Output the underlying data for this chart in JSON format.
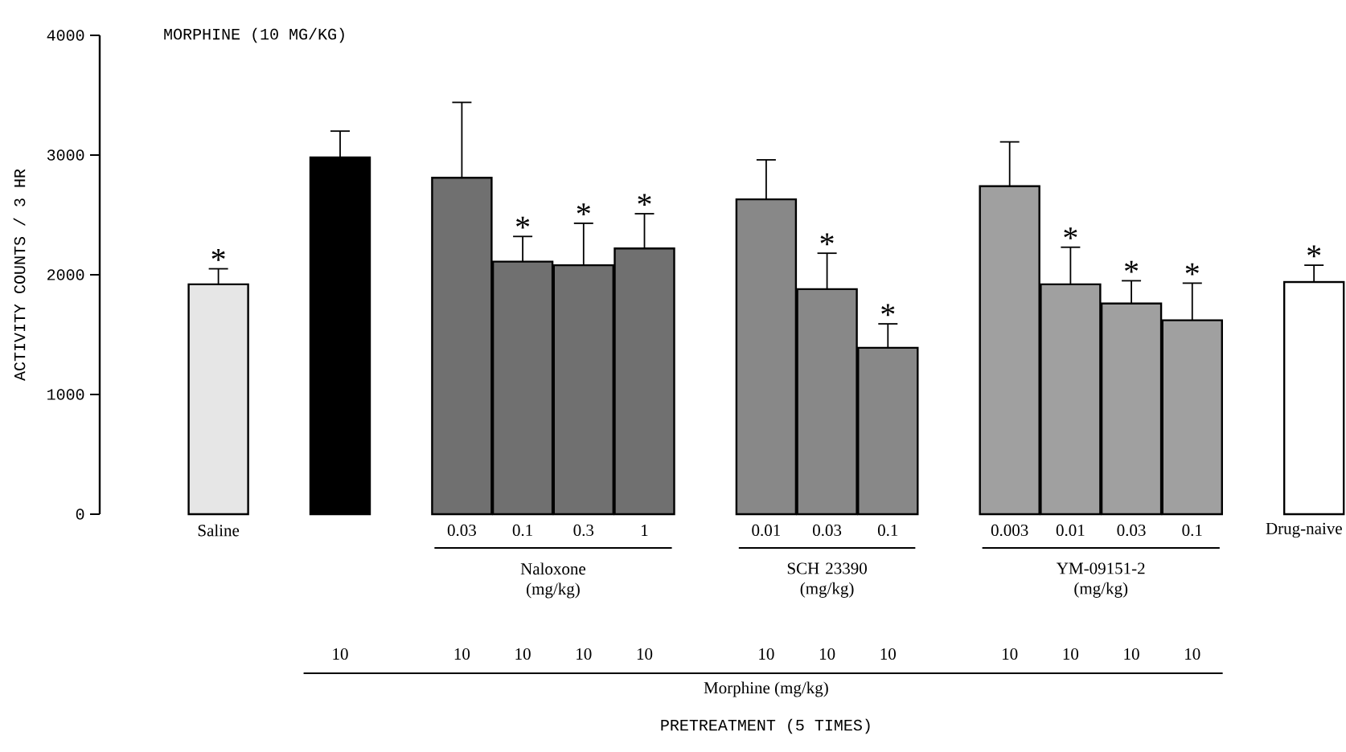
{
  "chart_data": {
    "type": "bar",
    "title": "MORPHINE (10 MG/KG)",
    "ylabel": "ACTIVITY COUNTS / 3 HR",
    "categories": [
      "Saline",
      null,
      "0.03",
      "0.1",
      "0.3",
      "1",
      "0.01",
      "0.03",
      "0.1",
      "0.003",
      "0.01",
      "0.03",
      "0.1",
      "Drug-naive"
    ],
    "values": [
      1920,
      2980,
      2810,
      2110,
      2080,
      2220,
      2630,
      1880,
      1390,
      2740,
      1920,
      1760,
      1620,
      1940
    ],
    "errors": [
      130,
      220,
      630,
      210,
      350,
      290,
      330,
      300,
      200,
      370,
      310,
      190,
      310,
      140
    ],
    "value_labels": [
      "*",
      null,
      null,
      "*",
      "*",
      "*",
      null,
      "*",
      "*",
      null,
      "*",
      "*",
      "*",
      "*"
    ],
    "colors": [
      "#e6e6e6",
      "#000000",
      "#707070",
      "#707070",
      "#707070",
      "#707070",
      "#888888",
      "#888888",
      "#888888",
      "#a0a0a0",
      "#a0a0a0",
      "#a0a0a0",
      "#a0a0a0",
      "#ffffff"
    ],
    "ylim": [
      0,
      4000
    ],
    "yticks": [
      0,
      1000,
      2000,
      3000,
      4000
    ],
    "annotations": [
      "Naloxone (mg/kg)",
      "SCH 23390 (mg/kg)",
      "YM-09151-2 (mg/kg)",
      "10",
      "10",
      "10",
      "10",
      "10",
      "10",
      "10",
      "10",
      "10",
      "10",
      "10",
      "10",
      "Morphine (mg/kg)",
      "PRETREATMENT (5 TIMES)"
    ]
  }
}
